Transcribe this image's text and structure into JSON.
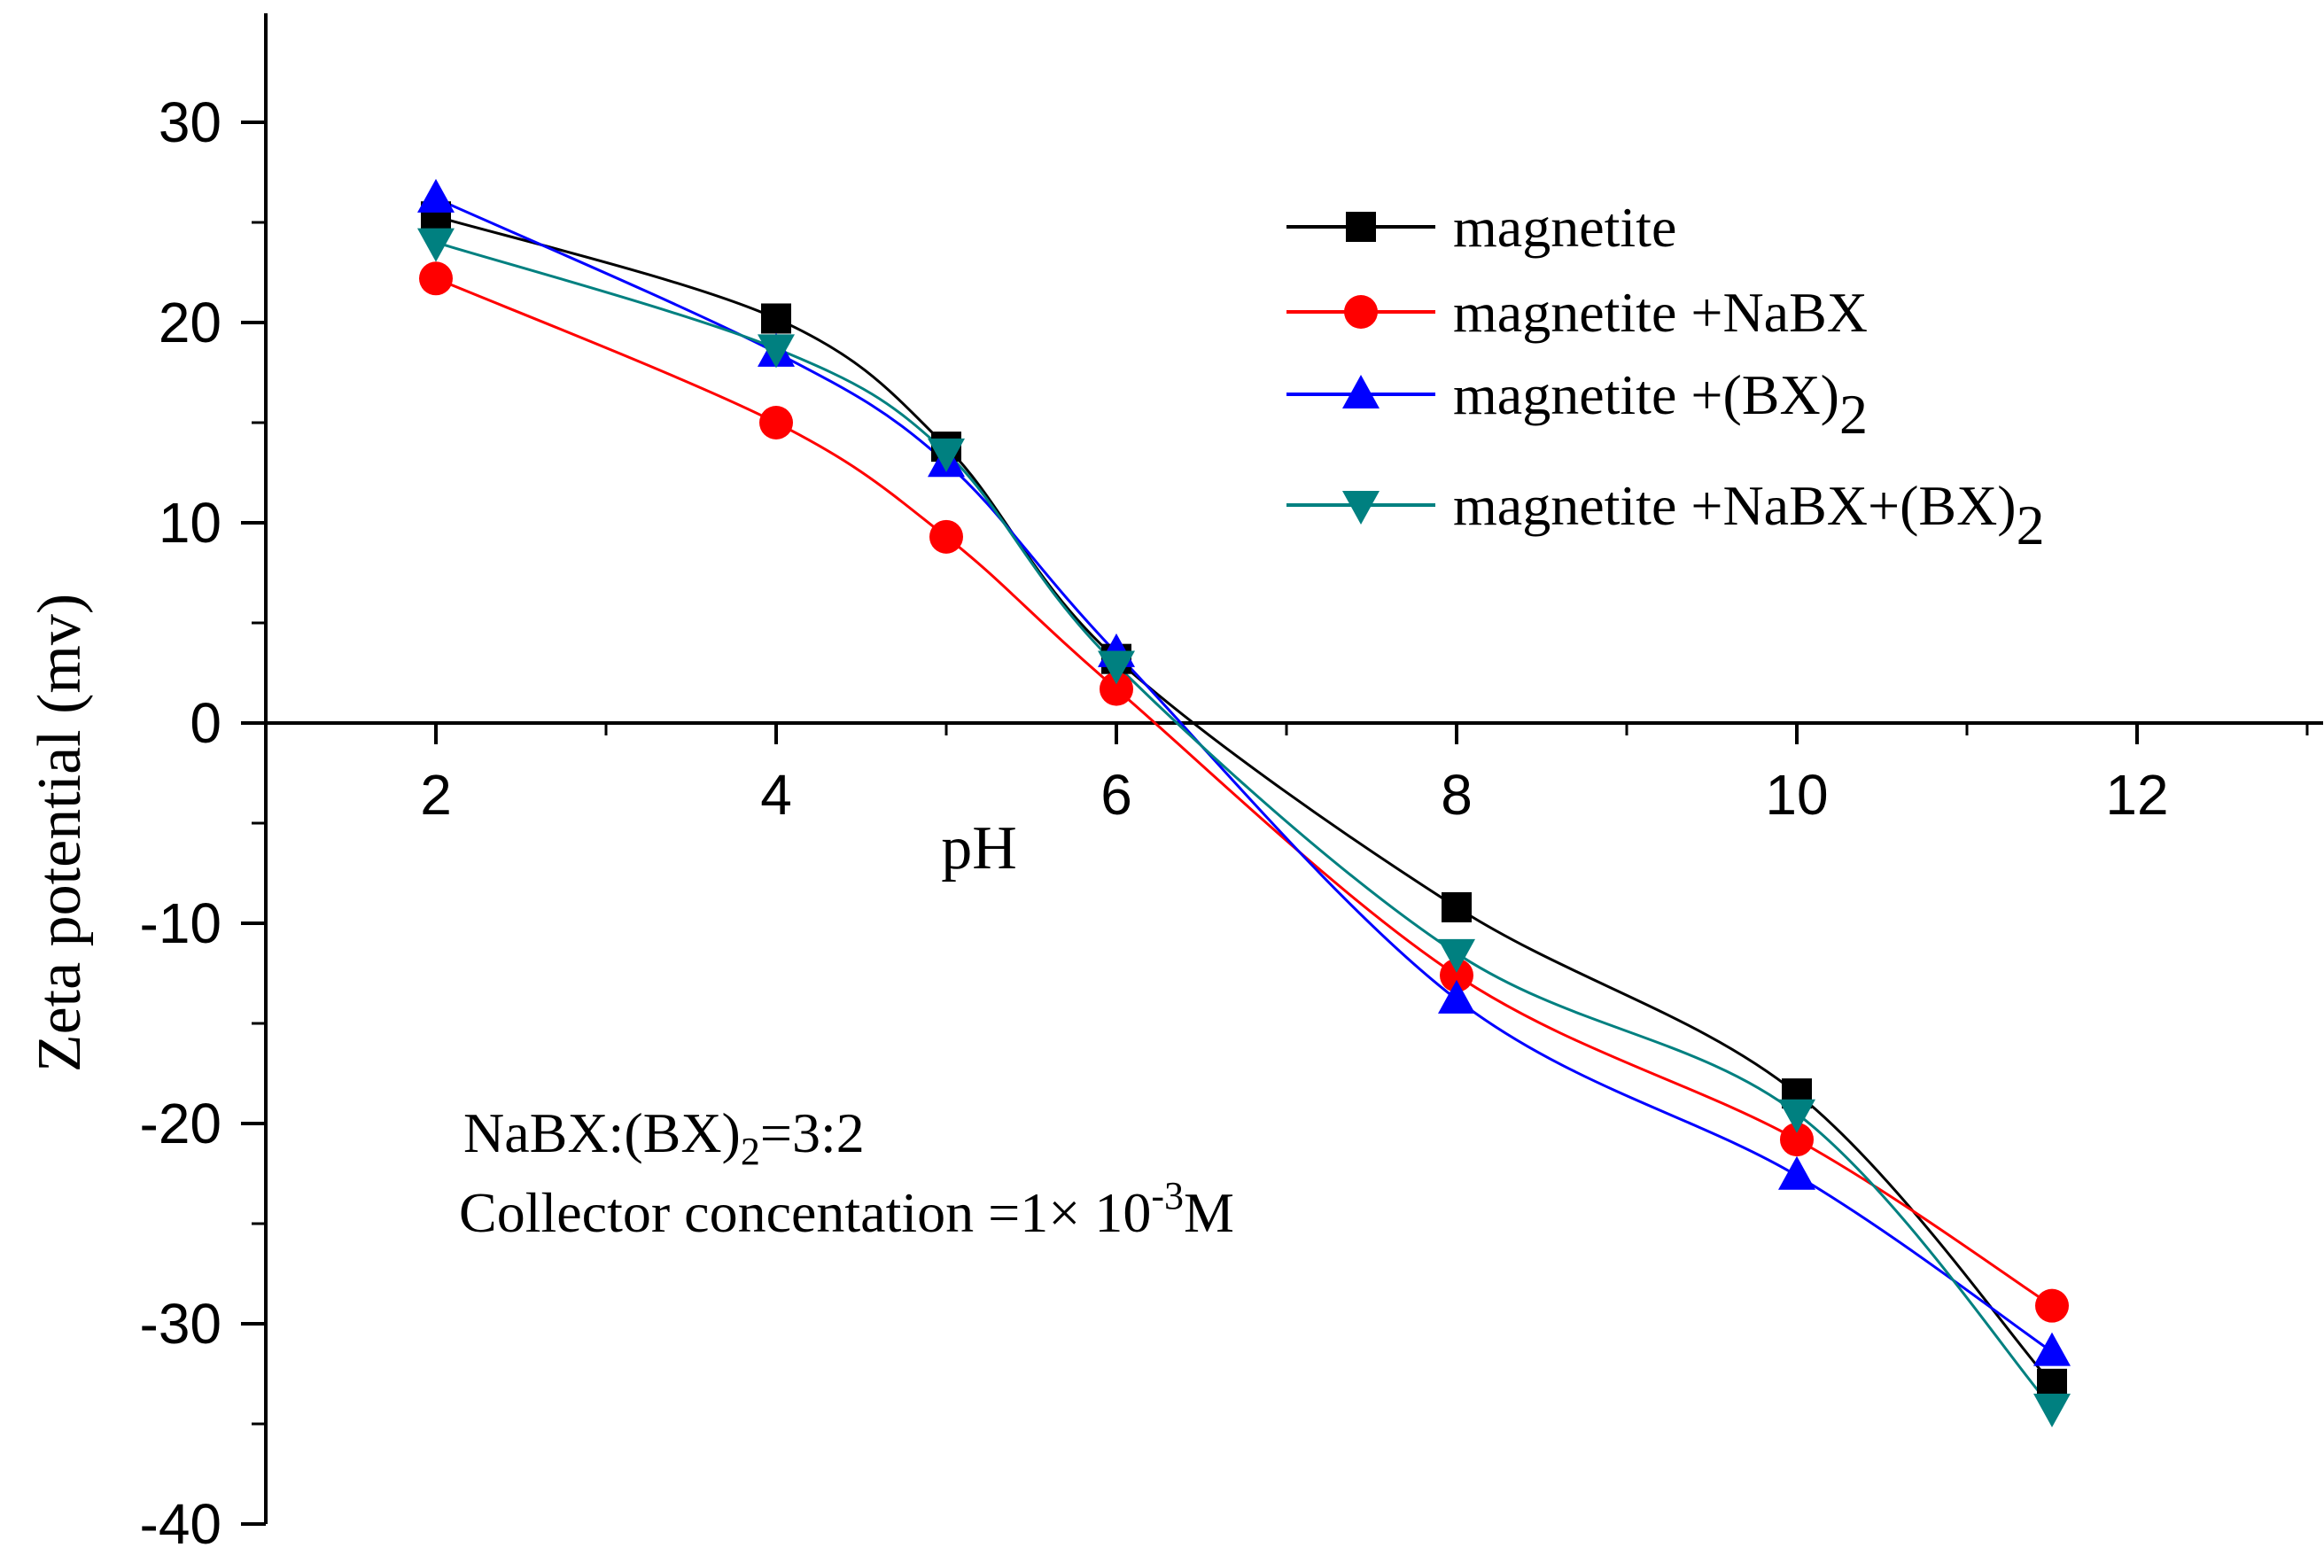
{
  "chart_data": {
    "type": "line",
    "title": "",
    "xlabel": "pH",
    "ylabel": "Zeta potential (mv)",
    "xlim": [
      1,
      13
    ],
    "ylim": [
      -40,
      35
    ],
    "x_ticks": [
      2,
      4,
      6,
      8,
      10,
      12
    ],
    "y_ticks": [
      30,
      20,
      10,
      0,
      -10,
      -20,
      -30,
      -40
    ],
    "x_tick_labels": [
      "2",
      "4",
      "6",
      "8",
      "10",
      "12"
    ],
    "y_tick_labels": [
      "30",
      "20",
      "10",
      "0",
      "-10",
      "-20",
      "-30",
      "-40"
    ],
    "legend_position": "top-right",
    "series": [
      {
        "name": "magnetite",
        "label_main": "magnetite",
        "label_sub": "",
        "label_after": "",
        "color": "#000000",
        "marker": "square",
        "x": [
          2,
          4,
          5,
          6,
          8,
          10,
          11.5
        ],
        "values": [
          25.3,
          20.2,
          13.8,
          3.2,
          -9.2,
          -18.5,
          -33.0
        ]
      },
      {
        "name": "magnetite +NaBX",
        "label_main": "magnetite +NaBX",
        "label_sub": "",
        "label_after": "",
        "color": "#ff0000",
        "marker": "circle",
        "x": [
          2,
          4,
          5,
          6,
          8,
          10,
          11.5
        ],
        "values": [
          22.2,
          15.0,
          9.3,
          1.7,
          -12.6,
          -20.8,
          -29.1
        ]
      },
      {
        "name": "magnetite +(BX)2",
        "label_main": "magnetite +(BX)",
        "label_sub": "2",
        "label_after": "",
        "color": "#0000ff",
        "marker": "triangle-up",
        "x": [
          2,
          4,
          5,
          6,
          8,
          10,
          11.5
        ],
        "values": [
          26.2,
          18.5,
          13.0,
          3.5,
          -13.8,
          -22.6,
          -31.4
        ]
      },
      {
        "name": "magnetite +NaBX+(BX)2",
        "label_main": "magnetite +NaBX+(BX)",
        "label_sub": "2",
        "label_after": "",
        "color": "#008080",
        "marker": "triangle-down",
        "x": [
          2,
          4,
          5,
          6,
          8,
          10,
          11.5
        ],
        "values": [
          24.0,
          18.7,
          13.5,
          2.9,
          -11.5,
          -19.5,
          -34.2
        ]
      }
    ],
    "annotations": {
      "line1_main": "NaBX:(BX)",
      "line1_sub": "2",
      "line1_after": "=3:2",
      "line2_main": "Collector concentation =1×  10",
      "line2_sup": "-3",
      "line2_after": "M"
    }
  }
}
